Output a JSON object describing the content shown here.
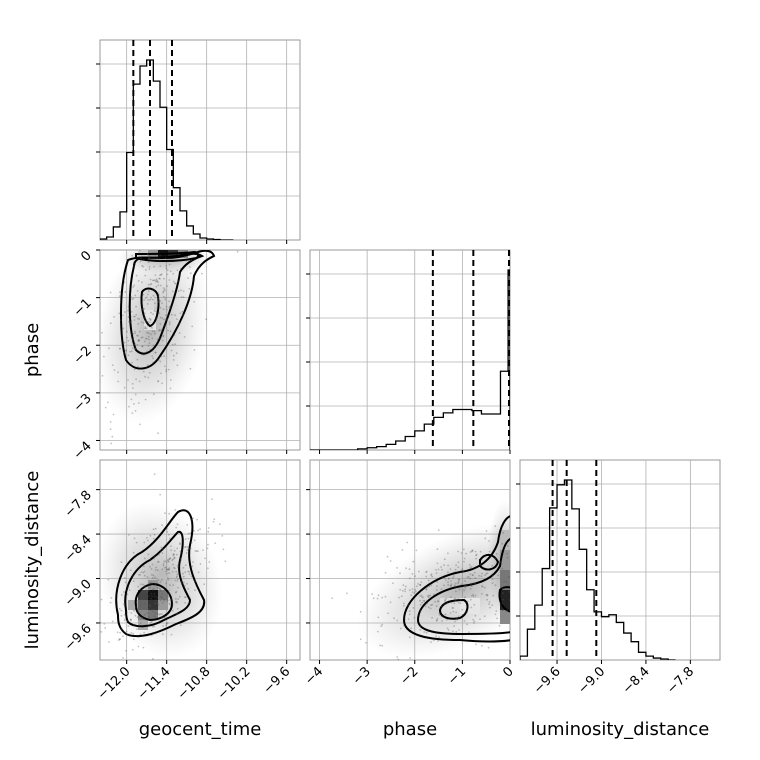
{
  "chart_data": {
    "type": "corner",
    "params": [
      "geocent_time",
      "phase",
      "luminosity_distance"
    ],
    "axis_titles": {
      "geocent_time": "geocent_time",
      "phase": "phase",
      "luminosity_distance": "luminosity_distance"
    },
    "ranges": {
      "geocent_time": [
        -12.4,
        -9.4
      ],
      "phase": [
        -4.2,
        0.0
      ],
      "luminosity_distance": [
        -10.1,
        -7.4
      ]
    },
    "ticks": {
      "geocent_time": [
        -12.0,
        -11.4,
        -10.8,
        -10.2,
        -9.6
      ],
      "phase": [
        -4,
        -3,
        -2,
        -1,
        0
      ],
      "luminosity_distance": [
        -9.6,
        -9.0,
        -8.4,
        -7.8
      ]
    },
    "tick_labels": {
      "geocent_time": [
        "−12.0",
        "−11.4",
        "−10.8",
        "−10.2",
        "−9.6"
      ],
      "phase": [
        "−4",
        "−3",
        "−2",
        "−1",
        "0"
      ],
      "luminosity_distance": [
        "−9.6",
        "−9.0",
        "−8.4",
        "−7.8"
      ]
    },
    "quantiles": {
      "geocent_time": [
        -11.9,
        -11.65,
        -11.32
      ],
      "phase": [
        -1.62,
        -0.77,
        0.0
      ],
      "luminosity_distance": [
        -9.66,
        -9.47,
        -9.07
      ]
    },
    "histograms": {
      "geocent_time": {
        "bin_edges": [
          -12.4,
          -12.3,
          -12.2,
          -12.1,
          -12.0,
          -11.9,
          -11.8,
          -11.7,
          -11.6,
          -11.5,
          -11.4,
          -11.3,
          -11.2,
          -11.1,
          -11.0,
          -10.9,
          -10.8,
          -10.7,
          -10.6,
          -10.5,
          -10.4
        ],
        "counts": [
          1,
          3,
          13,
          28,
          87,
          155,
          173,
          179,
          158,
          132,
          90,
          52,
          29,
          14,
          6,
          2,
          1,
          0.5,
          0,
          0
        ]
      },
      "phase": {
        "bin_edges": [
          -4.2,
          -4.0,
          -3.8,
          -3.6,
          -3.4,
          -3.2,
          -3.0,
          -2.8,
          -2.6,
          -2.4,
          -2.2,
          -2.0,
          -1.8,
          -1.6,
          -1.4,
          -1.2,
          -1.0,
          -0.8,
          -0.6,
          -0.4,
          -0.2,
          -0.04,
          0.0
        ],
        "counts": [
          0,
          0,
          0,
          0,
          0,
          1,
          2,
          3,
          5,
          8,
          12,
          17,
          23,
          29,
          33,
          36,
          36,
          35,
          32,
          32,
          70,
          160
        ]
      },
      "luminosity_distance": {
        "bin_edges": [
          -10.1,
          -10.0,
          -9.9,
          -9.8,
          -9.7,
          -9.6,
          -9.5,
          -9.4,
          -9.3,
          -9.2,
          -9.1,
          -9.0,
          -8.9,
          -8.8,
          -8.7,
          -8.6,
          -8.5,
          -8.4,
          -8.3,
          -8.2,
          -8.1,
          -8.0
        ],
        "counts": [
          4,
          32,
          57,
          95,
          158,
          182,
          187,
          157,
          115,
          73,
          50,
          45,
          47,
          39,
          28,
          19,
          8,
          4,
          2,
          1,
          0
        ]
      }
    },
    "grid": true
  }
}
